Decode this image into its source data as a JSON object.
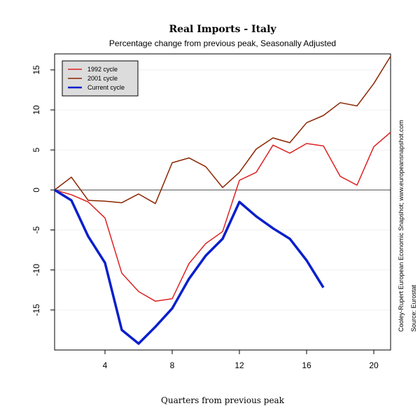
{
  "chart_data": {
    "type": "line",
    "title": "Real Imports - Italy",
    "subtitle": "Percentage change from previous peak, Seasonally Adjusted",
    "xlabel": "Quarters from previous peak",
    "ylabel": "",
    "xlim": [
      1,
      21
    ],
    "ylim": [
      -20,
      17
    ],
    "x_ticks": [
      4,
      8,
      12,
      16,
      20
    ],
    "y_ticks": [
      -15,
      -10,
      -5,
      0,
      5,
      10,
      15
    ],
    "grid": true,
    "legend_position": "top-left",
    "side_notes": [
      "Cooley-Rupert European Economic Snapshot; www.europeansnapshot.com",
      "Source: Eurostat"
    ],
    "series": [
      {
        "name": "1992 cycle",
        "color": "#dd2222",
        "x": [
          1,
          2,
          3,
          4,
          5,
          6,
          7,
          8,
          9,
          10,
          11,
          12,
          13,
          14,
          15,
          16,
          17,
          18,
          19,
          20,
          21
        ],
        "values": [
          0,
          -0.6,
          -1.5,
          -3.5,
          -10.4,
          -12.7,
          -13.9,
          -13.6,
          -9.2,
          -6.7,
          -5.2,
          1.2,
          2.2,
          5.6,
          4.6,
          5.8,
          5.5,
          1.7,
          0.6,
          5.4,
          7.2
        ]
      },
      {
        "name": "2001 cycle",
        "color": "#8b2500",
        "x": [
          1,
          2,
          3,
          4,
          5,
          6,
          7,
          8,
          9,
          10,
          11,
          12,
          13,
          14,
          15,
          16,
          17,
          18,
          19,
          20,
          21
        ],
        "values": [
          0,
          1.6,
          -1.3,
          -1.4,
          -1.6,
          -0.5,
          -1.7,
          3.4,
          4.0,
          2.9,
          0.3,
          2.2,
          5.1,
          6.5,
          5.9,
          8.4,
          9.3,
          10.9,
          10.5,
          13.3,
          16.7
        ]
      },
      {
        "name": "Current cycle",
        "color": "#0a1fcc",
        "x": [
          1,
          2,
          3,
          4,
          5,
          6,
          7,
          8,
          9,
          10,
          11,
          12,
          13,
          14,
          15,
          16,
          17
        ],
        "values": [
          0,
          -1.3,
          -5.8,
          -9.1,
          -17.5,
          -19.2,
          -17.1,
          -14.8,
          -11.1,
          -8.2,
          -6.1,
          -1.5,
          -3.3,
          -4.8,
          -6.1,
          -8.8,
          -12.2
        ]
      }
    ]
  }
}
